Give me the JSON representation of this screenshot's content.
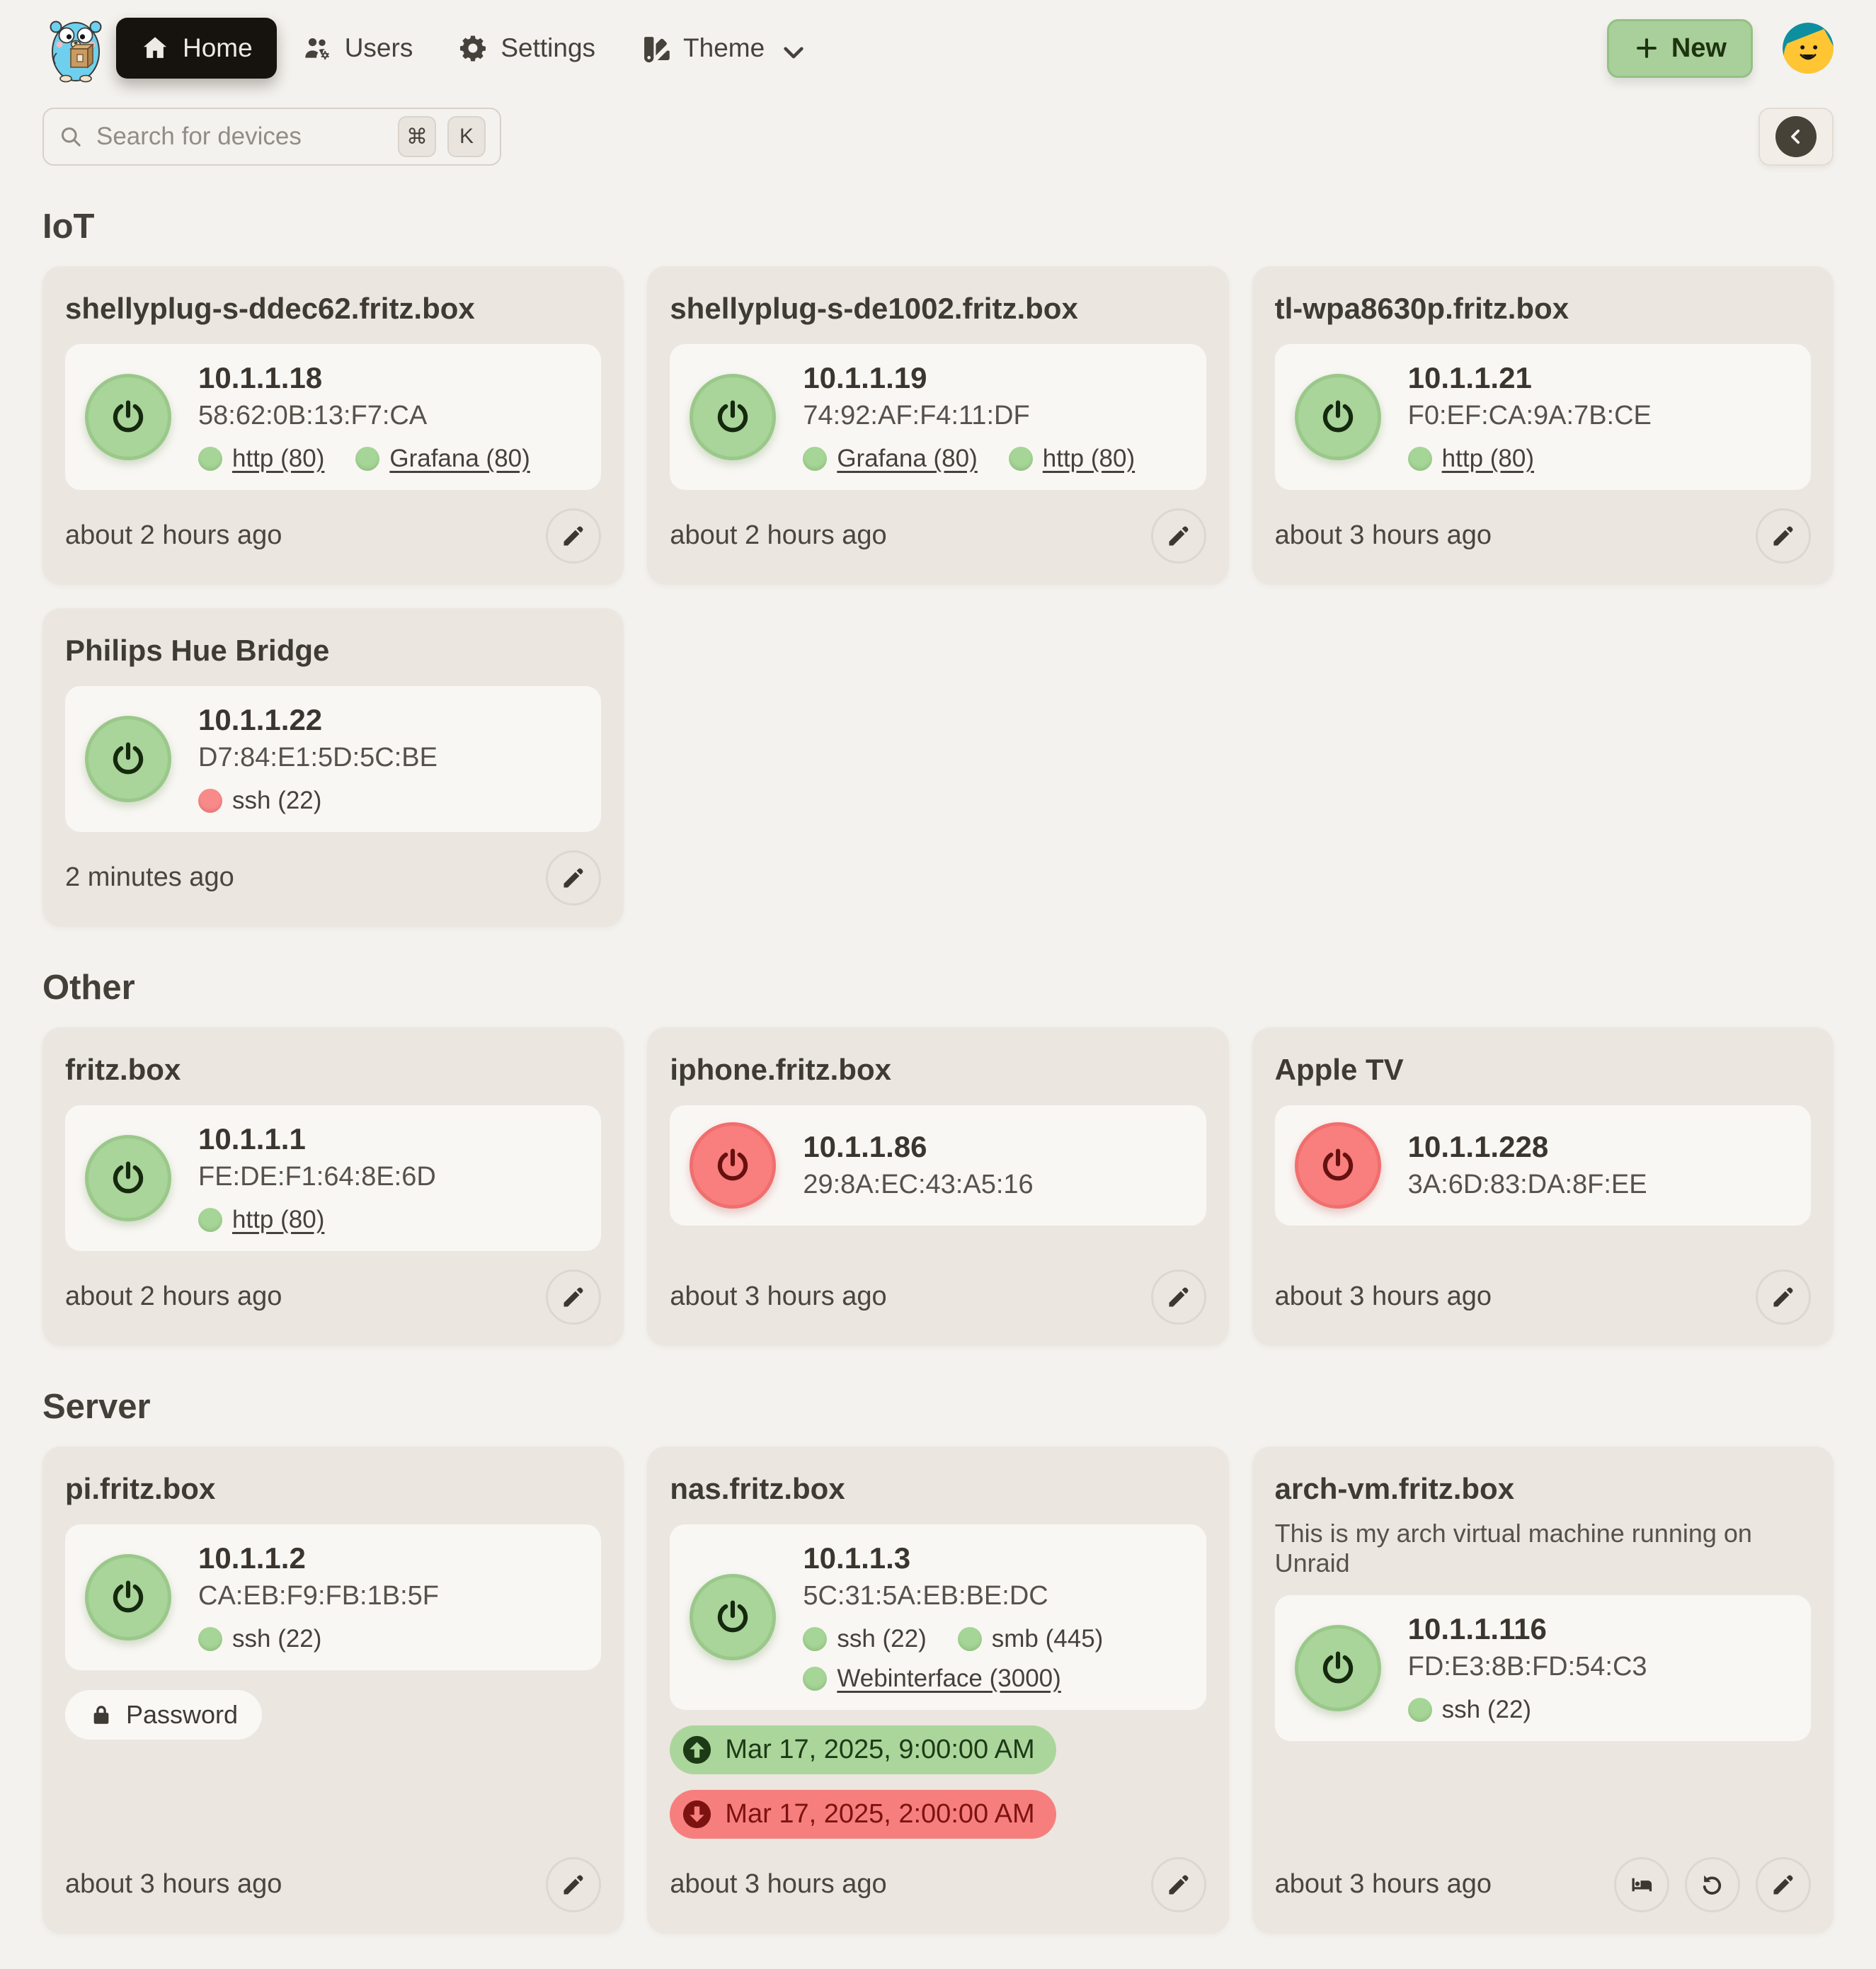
{
  "nav": {
    "items": [
      {
        "id": "home",
        "label": "Home",
        "active": true
      },
      {
        "id": "users",
        "label": "Users",
        "active": false
      },
      {
        "id": "settings",
        "label": "Settings",
        "active": false
      },
      {
        "id": "theme",
        "label": "Theme",
        "active": false,
        "has_chevron": true
      }
    ],
    "new_button_label": "New"
  },
  "search": {
    "placeholder": "Search for devices",
    "kbd_modifier": "⌘",
    "kbd_key": "K"
  },
  "icons": [
    "app-logo-gopher",
    "home-icon",
    "users-gear-icon",
    "gear-icon",
    "swatchbook-icon",
    "chevron-down-icon",
    "plus-icon",
    "user-avatar",
    "search-icon",
    "command-key",
    "chevron-left-icon",
    "power-icon",
    "pencil-icon",
    "lock-icon",
    "bed-icon",
    "rotate-left-icon",
    "circle-arrow-up-icon",
    "circle-arrow-down-icon",
    "port-dot"
  ],
  "colors": {
    "page_bg": "#f4f2ee",
    "card_bg": "#ebe6e0",
    "panel_bg": "#f9f7f4",
    "power_on": "#a9d49a",
    "power_off": "#f87f7e",
    "port_open_dot": "#a6d697",
    "port_closed_dot": "#f88b8a",
    "wake_badge_bg": "#abd69b",
    "wake_badge_text": "#1d3a17",
    "shutdown_badge_bg": "#f67f7e",
    "shutdown_badge_text": "#7c1310",
    "nav_active_bg": "#16130f",
    "new_button_bg": "#a9cf9b"
  },
  "sections": [
    {
      "title": "IoT",
      "devices": [
        {
          "name": "shellyplug-s-ddec62.fritz.box",
          "ip": "10.1.1.18",
          "mac": "58:62:0B:13:F7:CA",
          "status": "on",
          "ports": [
            {
              "label": "http (80)",
              "state": "open",
              "link": true
            },
            {
              "label": "Grafana (80)",
              "state": "open",
              "link": true
            }
          ],
          "updated": "about 2 hours ago",
          "actions": [
            "edit"
          ]
        },
        {
          "name": "shellyplug-s-de1002.fritz.box",
          "ip": "10.1.1.19",
          "mac": "74:92:AF:F4:11:DF",
          "status": "on",
          "ports": [
            {
              "label": "Grafana (80)",
              "state": "open",
              "link": true
            },
            {
              "label": "http (80)",
              "state": "open",
              "link": true
            }
          ],
          "updated": "about 2 hours ago",
          "actions": [
            "edit"
          ]
        },
        {
          "name": "tl-wpa8630p.fritz.box",
          "ip": "10.1.1.21",
          "mac": "F0:EF:CA:9A:7B:CE",
          "status": "on",
          "ports": [
            {
              "label": "http (80)",
              "state": "open",
              "link": true
            }
          ],
          "updated": "about 3 hours ago",
          "actions": [
            "edit"
          ]
        },
        {
          "name": "Philips Hue Bridge",
          "ip": "10.1.1.22",
          "mac": "D7:84:E1:5D:5C:BE",
          "status": "on",
          "ports": [
            {
              "label": "ssh (22)",
              "state": "closed",
              "link": false
            }
          ],
          "updated": "2 minutes ago",
          "actions": [
            "edit"
          ]
        }
      ]
    },
    {
      "title": "Other",
      "devices": [
        {
          "name": "fritz.box",
          "ip": "10.1.1.1",
          "mac": "FE:DE:F1:64:8E:6D",
          "status": "on",
          "ports": [
            {
              "label": "http (80)",
              "state": "open",
              "link": true
            }
          ],
          "updated": "about 2 hours ago",
          "actions": [
            "edit"
          ]
        },
        {
          "name": "iphone.fritz.box",
          "ip": "10.1.1.86",
          "mac": "29:8A:EC:43:A5:16",
          "status": "off",
          "ports": [],
          "updated": "about 3 hours ago",
          "actions": [
            "edit"
          ]
        },
        {
          "name": "Apple TV",
          "ip": "10.1.1.228",
          "mac": "3A:6D:83:DA:8F:EE",
          "status": "off",
          "ports": [],
          "updated": "about 3 hours ago",
          "actions": [
            "edit"
          ]
        }
      ]
    },
    {
      "title": "Server",
      "devices": [
        {
          "name": "pi.fritz.box",
          "ip": "10.1.1.2",
          "mac": "CA:EB:F9:FB:1B:5F",
          "status": "on",
          "ports": [
            {
              "label": "ssh (22)",
              "state": "open",
              "link": false
            }
          ],
          "password_label": "Password",
          "updated": "about 3 hours ago",
          "actions": [
            "edit"
          ]
        },
        {
          "name": "nas.fritz.box",
          "ip": "10.1.1.3",
          "mac": "5C:31:5A:EB:BE:DC",
          "status": "on",
          "ports": [
            {
              "label": "ssh (22)",
              "state": "open",
              "link": false
            },
            {
              "label": "smb (445)",
              "state": "open",
              "link": false
            },
            {
              "label": "Webinterface (3000)",
              "state": "open",
              "link": true
            }
          ],
          "schedules": [
            {
              "type": "wake",
              "text": "Mar 17, 2025, 9:00:00 AM"
            },
            {
              "type": "shutdown",
              "text": "Mar 17, 2025, 2:00:00 AM"
            }
          ],
          "updated": "about 3 hours ago",
          "actions": [
            "edit"
          ]
        },
        {
          "name": "arch-vm.fritz.box",
          "description": "This is my arch virtual machine running on Unraid",
          "ip": "10.1.1.116",
          "mac": "FD:E3:8B:FD:54:C3",
          "status": "on",
          "ports": [
            {
              "label": "ssh (22)",
              "state": "open",
              "link": false
            }
          ],
          "updated": "about 3 hours ago",
          "actions": [
            "sleep",
            "restore",
            "edit"
          ]
        }
      ]
    }
  ]
}
